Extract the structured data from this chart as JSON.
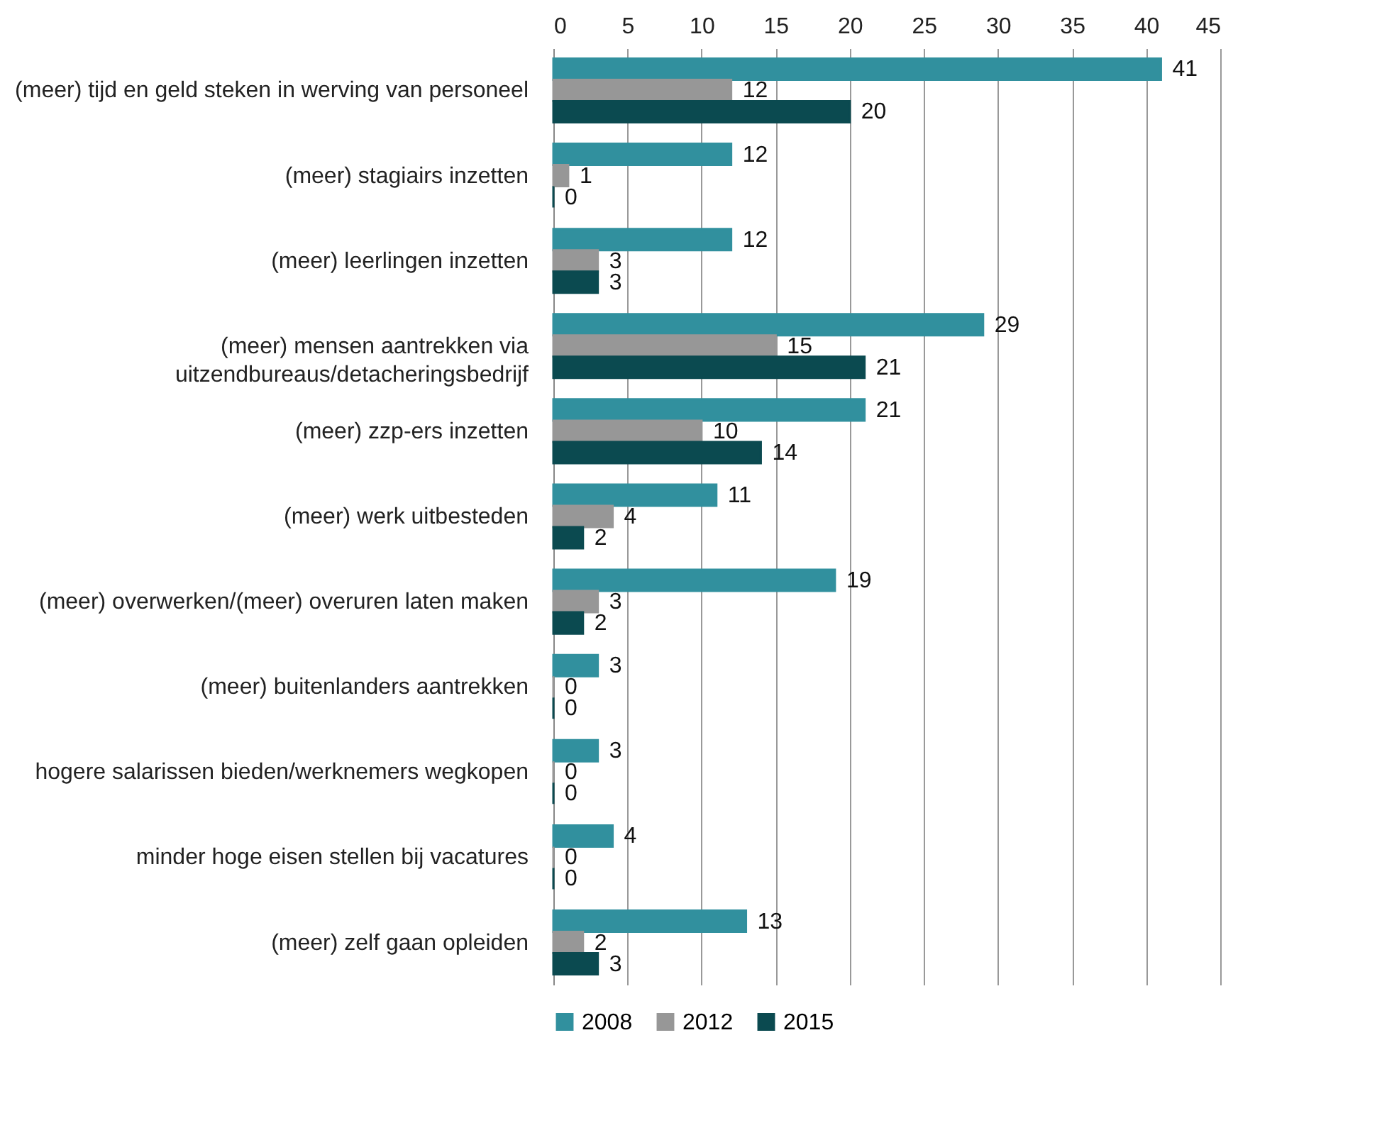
{
  "chart_data": {
    "type": "bar",
    "orientation": "horizontal",
    "categories": [
      "(meer) tijd en geld steken in werving van personeel",
      "(meer) stagiairs inzetten",
      "(meer) leerlingen inzetten",
      "(meer) mensen aantrekken via\nuitzendbureaus/detacheringsbedrijf",
      "(meer) zzp-ers inzetten",
      "(meer) werk uitbesteden",
      "(meer) overwerken/(meer) overuren laten maken",
      "(meer) buitenlanders aantrekken",
      "hogere salarissen bieden/werknemers wegkopen",
      "minder hoge eisen stellen bij vacatures",
      "(meer) zelf gaan opleiden"
    ],
    "series": [
      {
        "name": "2008",
        "color": "#31909e",
        "values": [
          41,
          12,
          12,
          29,
          21,
          11,
          19,
          3,
          3,
          4,
          13
        ]
      },
      {
        "name": "2012",
        "color": "#979797",
        "values": [
          12,
          1,
          3,
          15,
          10,
          4,
          3,
          0,
          0,
          0,
          2
        ]
      },
      {
        "name": "2015",
        "color": "#0b4a50",
        "values": [
          20,
          0,
          3,
          21,
          14,
          2,
          2,
          0,
          0,
          0,
          3
        ]
      }
    ],
    "xlim": [
      0,
      45
    ],
    "xticks": [
      0,
      5,
      10,
      15,
      20,
      25,
      30,
      35,
      40,
      45
    ],
    "grid": "x",
    "legend": "bottom",
    "data_labels": true
  }
}
